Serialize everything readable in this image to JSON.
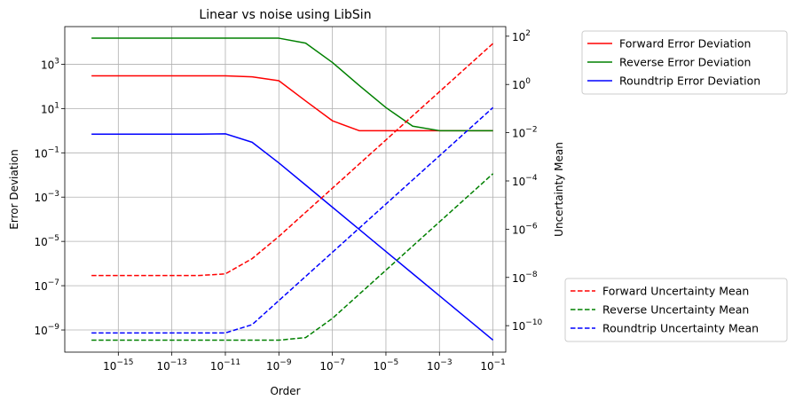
{
  "chart_data": {
    "type": "line",
    "title": "Linear vs noise using LibSin",
    "xlabel": "Order",
    "ylabel": "Error Deviation",
    "y2label": "Uncertainty Mean",
    "xscale": "log",
    "yscale": "log",
    "y2scale": "log",
    "xlim": [
      1e-17,
      0.3
    ],
    "ylim": [
      1e-10,
      50000.0
    ],
    "y2lim": [
      8e-12,
      250
    ],
    "grid": true,
    "xticks": [
      {
        "v": 1e-15,
        "base": "10",
        "exp": "−15"
      },
      {
        "v": 1e-13,
        "base": "10",
        "exp": "−13"
      },
      {
        "v": 1e-11,
        "base": "10",
        "exp": "−11"
      },
      {
        "v": 1e-09,
        "base": "10",
        "exp": "−9"
      },
      {
        "v": 1e-07,
        "base": "10",
        "exp": "−7"
      },
      {
        "v": 1e-05,
        "base": "10",
        "exp": "−5"
      },
      {
        "v": 0.001,
        "base": "10",
        "exp": "−3"
      },
      {
        "v": 0.1,
        "base": "10",
        "exp": "−1"
      }
    ],
    "yticks": [
      {
        "v": 1e-09,
        "base": "10",
        "exp": "−9"
      },
      {
        "v": 1e-07,
        "base": "10",
        "exp": "−7"
      },
      {
        "v": 1e-05,
        "base": "10",
        "exp": "−5"
      },
      {
        "v": 0.001,
        "base": "10",
        "exp": "−3"
      },
      {
        "v": 0.1,
        "base": "10",
        "exp": "−1"
      },
      {
        "v": 10,
        "base": "10",
        "exp": "1"
      },
      {
        "v": 1000,
        "base": "10",
        "exp": "3"
      }
    ],
    "y2ticks": [
      {
        "v": 1e-10,
        "base": "10",
        "exp": "−10"
      },
      {
        "v": 1e-08,
        "base": "10",
        "exp": "−8"
      },
      {
        "v": 1e-06,
        "base": "10",
        "exp": "−6"
      },
      {
        "v": 0.0001,
        "base": "10",
        "exp": "−4"
      },
      {
        "v": 0.01,
        "base": "10",
        "exp": "−2"
      },
      {
        "v": 1,
        "base": "10",
        "exp": "0"
      },
      {
        "v": 100,
        "base": "10",
        "exp": "2"
      }
    ],
    "x": [
      1e-16,
      1e-15,
      1e-14,
      1e-13,
      1e-12,
      1e-11,
      1e-10,
      1e-09,
      1e-08,
      1e-07,
      1e-06,
      1e-05,
      0.0001,
      0.001,
      0.01,
      0.1
    ],
    "series": [
      {
        "name": "Forward Error Deviation",
        "axis": "left",
        "color": "#ff0000",
        "dash": false,
        "values": [
          300,
          300,
          300,
          300,
          300,
          300,
          270,
          180,
          22,
          2.8,
          1.0,
          1.0,
          1.0,
          1.0,
          1.0,
          1.0
        ]
      },
      {
        "name": "Reverse Error Deviation",
        "axis": "left",
        "color": "#008000",
        "dash": false,
        "values": [
          15000,
          15000,
          15000,
          15000,
          15000,
          15000,
          15000,
          15000,
          9000,
          1200,
          110,
          11,
          1.6,
          1.0,
          1.0,
          1.0
        ]
      },
      {
        "name": "Roundtrip Error Deviation",
        "axis": "left",
        "color": "#0000ff",
        "dash": false,
        "values": [
          0.7,
          0.7,
          0.7,
          0.7,
          0.7,
          0.72,
          0.3,
          0.035,
          0.0035,
          0.00035,
          3.5e-05,
          3.5e-06,
          3.5e-07,
          3.5e-08,
          3.5e-09,
          3.5e-10
        ]
      },
      {
        "name": "Forward Uncertainty Mean",
        "axis": "right",
        "color": "#ff0000",
        "dash": true,
        "values": [
          1.2e-08,
          1.2e-08,
          1.2e-08,
          1.2e-08,
          1.2e-08,
          1.4e-08,
          6e-08,
          5e-07,
          5e-06,
          5e-05,
          0.0005,
          0.005,
          0.05,
          0.5,
          5,
          50
        ]
      },
      {
        "name": "Reverse Uncertainty Mean",
        "axis": "right",
        "color": "#008000",
        "dash": true,
        "values": [
          2.5e-11,
          2.5e-11,
          2.5e-11,
          2.5e-11,
          2.5e-11,
          2.5e-11,
          2.5e-11,
          2.5e-11,
          3.2e-11,
          2e-10,
          2e-09,
          2e-08,
          2e-07,
          2e-06,
          2e-05,
          0.0002
        ]
      },
      {
        "name": "Roundtrip Uncertainty Mean",
        "axis": "right",
        "color": "#0000ff",
        "dash": true,
        "values": [
          5e-11,
          5e-11,
          5e-11,
          5e-11,
          5e-11,
          5e-11,
          1.1e-10,
          1.1e-09,
          1.1e-08,
          1.1e-07,
          1.1e-06,
          1.1e-05,
          0.00011,
          0.0011,
          0.011,
          0.11
        ]
      }
    ],
    "legends": [
      {
        "placement": "upper-right",
        "entries": [
          0,
          1,
          2
        ]
      },
      {
        "placement": "lower-right",
        "entries": [
          3,
          4,
          5
        ]
      }
    ]
  }
}
